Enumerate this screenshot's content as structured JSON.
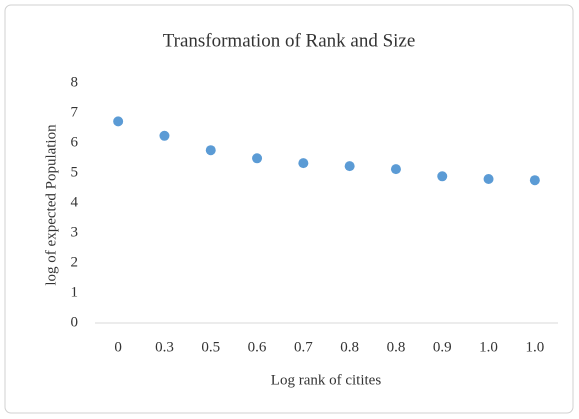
{
  "chart_data": {
    "type": "scatter",
    "title": "Transformation of Rank and Size",
    "x_label": "Log rank of citites",
    "y_label": "log of expected Population",
    "categories": [
      "0",
      "0.3",
      "0.5",
      "0.6",
      "0.7",
      "0.8",
      "0.8",
      "0.9",
      "1.0",
      "1.0"
    ],
    "values": [
      6.72,
      6.24,
      5.76,
      5.49,
      5.33,
      5.23,
      5.13,
      4.89,
      4.8,
      4.76
    ],
    "color": "#5b9bd5",
    "ylim": [
      0,
      8
    ],
    "yticks": [
      0,
      1,
      2,
      3,
      4,
      5,
      6,
      7,
      8
    ],
    "grid": false
  }
}
